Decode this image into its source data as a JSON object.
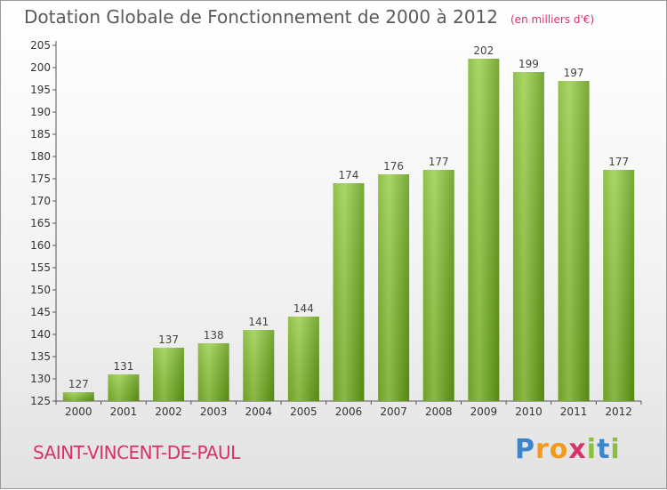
{
  "title": "Dotation Globale de Fonctionnement de 2000 à 2012",
  "unit": "(en milliers d'€)",
  "commune": "SAINT-VINCENT-DE-PAUL",
  "brand": {
    "letters": [
      "P",
      "r",
      "o",
      "x",
      "i",
      "t",
      "i"
    ],
    "name": "Proxiti"
  },
  "colors": {
    "bar_light": "#9ccf4e",
    "bar_dark": "#5f9a15",
    "title": "#5a5a5a",
    "accent": "#d8326a"
  },
  "chart_data": {
    "type": "bar",
    "title": "Dotation Globale de Fonctionnement de 2000 à 2012",
    "subtitle": "(en milliers d'€)",
    "xlabel": "",
    "ylabel": "",
    "categories": [
      "2000",
      "2001",
      "2002",
      "2003",
      "2004",
      "2005",
      "2006",
      "2007",
      "2008",
      "2009",
      "2010",
      "2011",
      "2012"
    ],
    "values": [
      127,
      131,
      137,
      138,
      141,
      144,
      174,
      176,
      177,
      202,
      199,
      197,
      177
    ],
    "ylim": [
      125,
      205
    ],
    "yticks": [
      125,
      130,
      135,
      140,
      145,
      150,
      155,
      160,
      165,
      170,
      175,
      180,
      185,
      190,
      195,
      200,
      205
    ],
    "grid": false,
    "legend": "none"
  }
}
